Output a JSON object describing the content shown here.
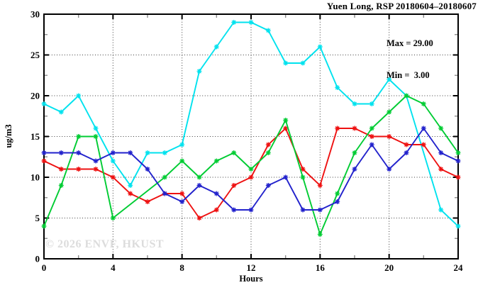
{
  "title": "Yuen Long, RSP 20180604–20180607",
  "watermark": "© 2026 ENVF, HKUST",
  "annotation_box": {
    "max": "Max = 29.00",
    "min": "Min =  3.00"
  },
  "chart_data": {
    "type": "line",
    "title": "Yuen Long, RSP 20180604–20180607",
    "xlabel": "Hours",
    "ylabel": "ug/m3",
    "xlim": [
      0,
      24
    ],
    "ylim": [
      0,
      30
    ],
    "x_ticks": [
      0,
      4,
      8,
      12,
      16,
      20,
      24
    ],
    "y_ticks": [
      0,
      5,
      10,
      15,
      20,
      25,
      30
    ],
    "x_minor_ticks": [
      2,
      6,
      10,
      14,
      18,
      22
    ],
    "y_minor_ticks": [
      2.5,
      7.5,
      12.5,
      17.5,
      22.5,
      27.5
    ],
    "x_gridlines": [
      4,
      8,
      12,
      16,
      20
    ],
    "y_gridlines": [
      5,
      10,
      15,
      20,
      25
    ],
    "grid_style": "dotted",
    "legend_position": "none",
    "marker": "asterisk",
    "max_value": 29.0,
    "min_value": 3.0,
    "x": [
      0,
      1,
      2,
      3,
      4,
      5,
      6,
      7,
      8,
      9,
      10,
      11,
      12,
      13,
      14,
      15,
      16,
      17,
      18,
      19,
      20,
      21,
      22,
      23,
      24
    ],
    "series": [
      {
        "name": "cyan-series",
        "color": "#00E2EE",
        "values": [
          19,
          18,
          20,
          16,
          12,
          9,
          13,
          13,
          14,
          23,
          26,
          29,
          29,
          28,
          24,
          24,
          26,
          21,
          19,
          19,
          22,
          20,
          null,
          6,
          4
        ]
      },
      {
        "name": "red-series",
        "color": "#EE1111",
        "values": [
          12,
          11,
          11,
          11,
          10,
          8,
          7,
          8,
          8,
          5,
          6,
          9,
          10,
          14,
          16,
          11,
          9,
          16,
          16,
          15,
          15,
          14,
          14,
          11,
          10
        ]
      },
      {
        "name": "green-series",
        "color": "#00CC33",
        "values": [
          4,
          9,
          15,
          15,
          5,
          null,
          null,
          10,
          12,
          10,
          12,
          13,
          11,
          13,
          17,
          10,
          3,
          8,
          13,
          16,
          18,
          20,
          19,
          16,
          13
        ]
      },
      {
        "name": "blue-series",
        "color": "#2222CC",
        "values": [
          13,
          13,
          13,
          12,
          13,
          13,
          11,
          8,
          7,
          9,
          8,
          6,
          6,
          9,
          10,
          6,
          6,
          7,
          11,
          14,
          11,
          13,
          16,
          13,
          12
        ]
      }
    ]
  }
}
